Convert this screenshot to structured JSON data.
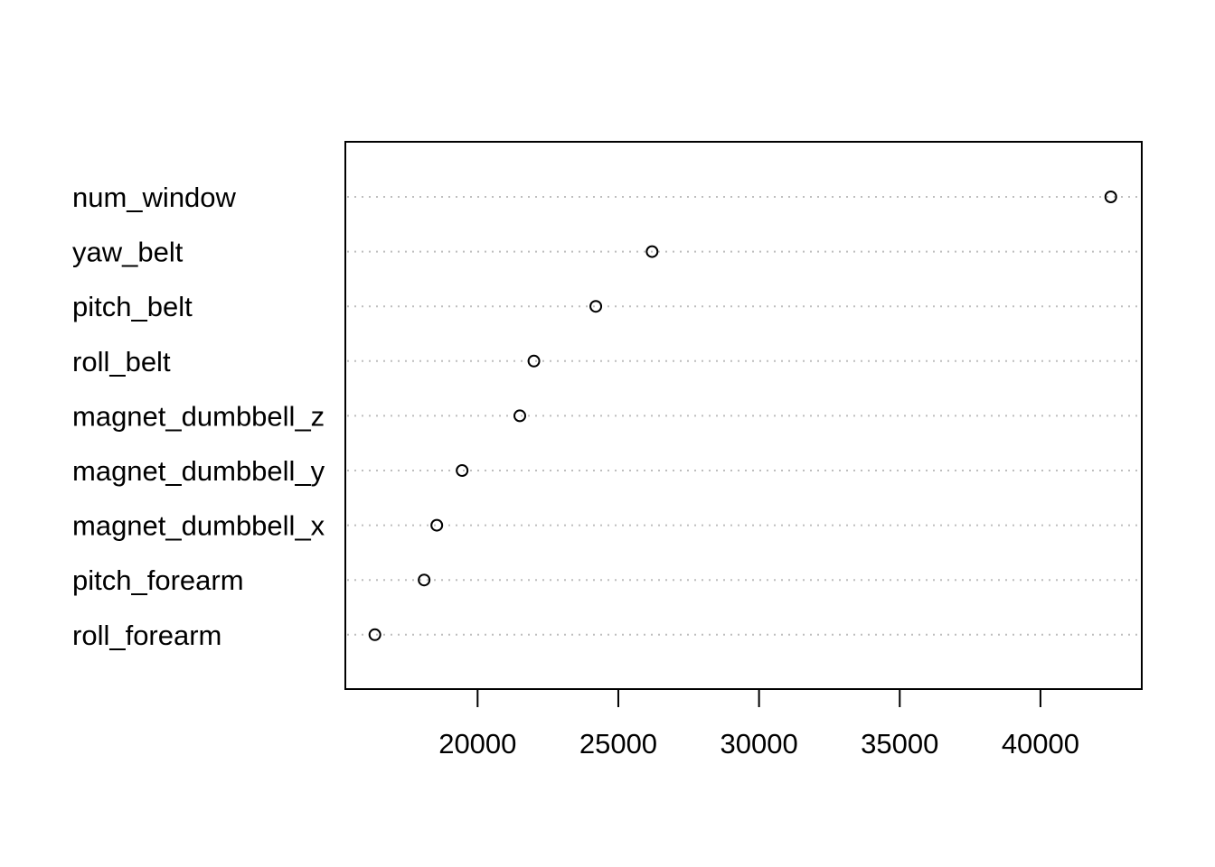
{
  "chart_data": {
    "type": "scatter",
    "style": "dotchart",
    "categories": [
      "num_window",
      "yaw_belt",
      "pitch_belt",
      "roll_belt",
      "magnet_dumbbell_z",
      "magnet_dumbbell_y",
      "magnet_dumbbell_x",
      "pitch_forearm",
      "roll_forearm"
    ],
    "values": [
      42500,
      26200,
      24200,
      22000,
      21500,
      19450,
      18550,
      18100,
      16350
    ],
    "xlim": [
      15300,
      43600
    ],
    "x_ticks": [
      20000,
      25000,
      30000,
      35000,
      40000
    ],
    "x_tick_labels": [
      "20000",
      "25000",
      "30000",
      "35000",
      "40000"
    ],
    "title": "",
    "xlabel": "",
    "ylabel": "",
    "grid": "dotted horizontal lines per category",
    "legend": "none",
    "colors": {
      "points": "#000000",
      "gridlines": "#bebebe",
      "frame": "#000000"
    }
  }
}
